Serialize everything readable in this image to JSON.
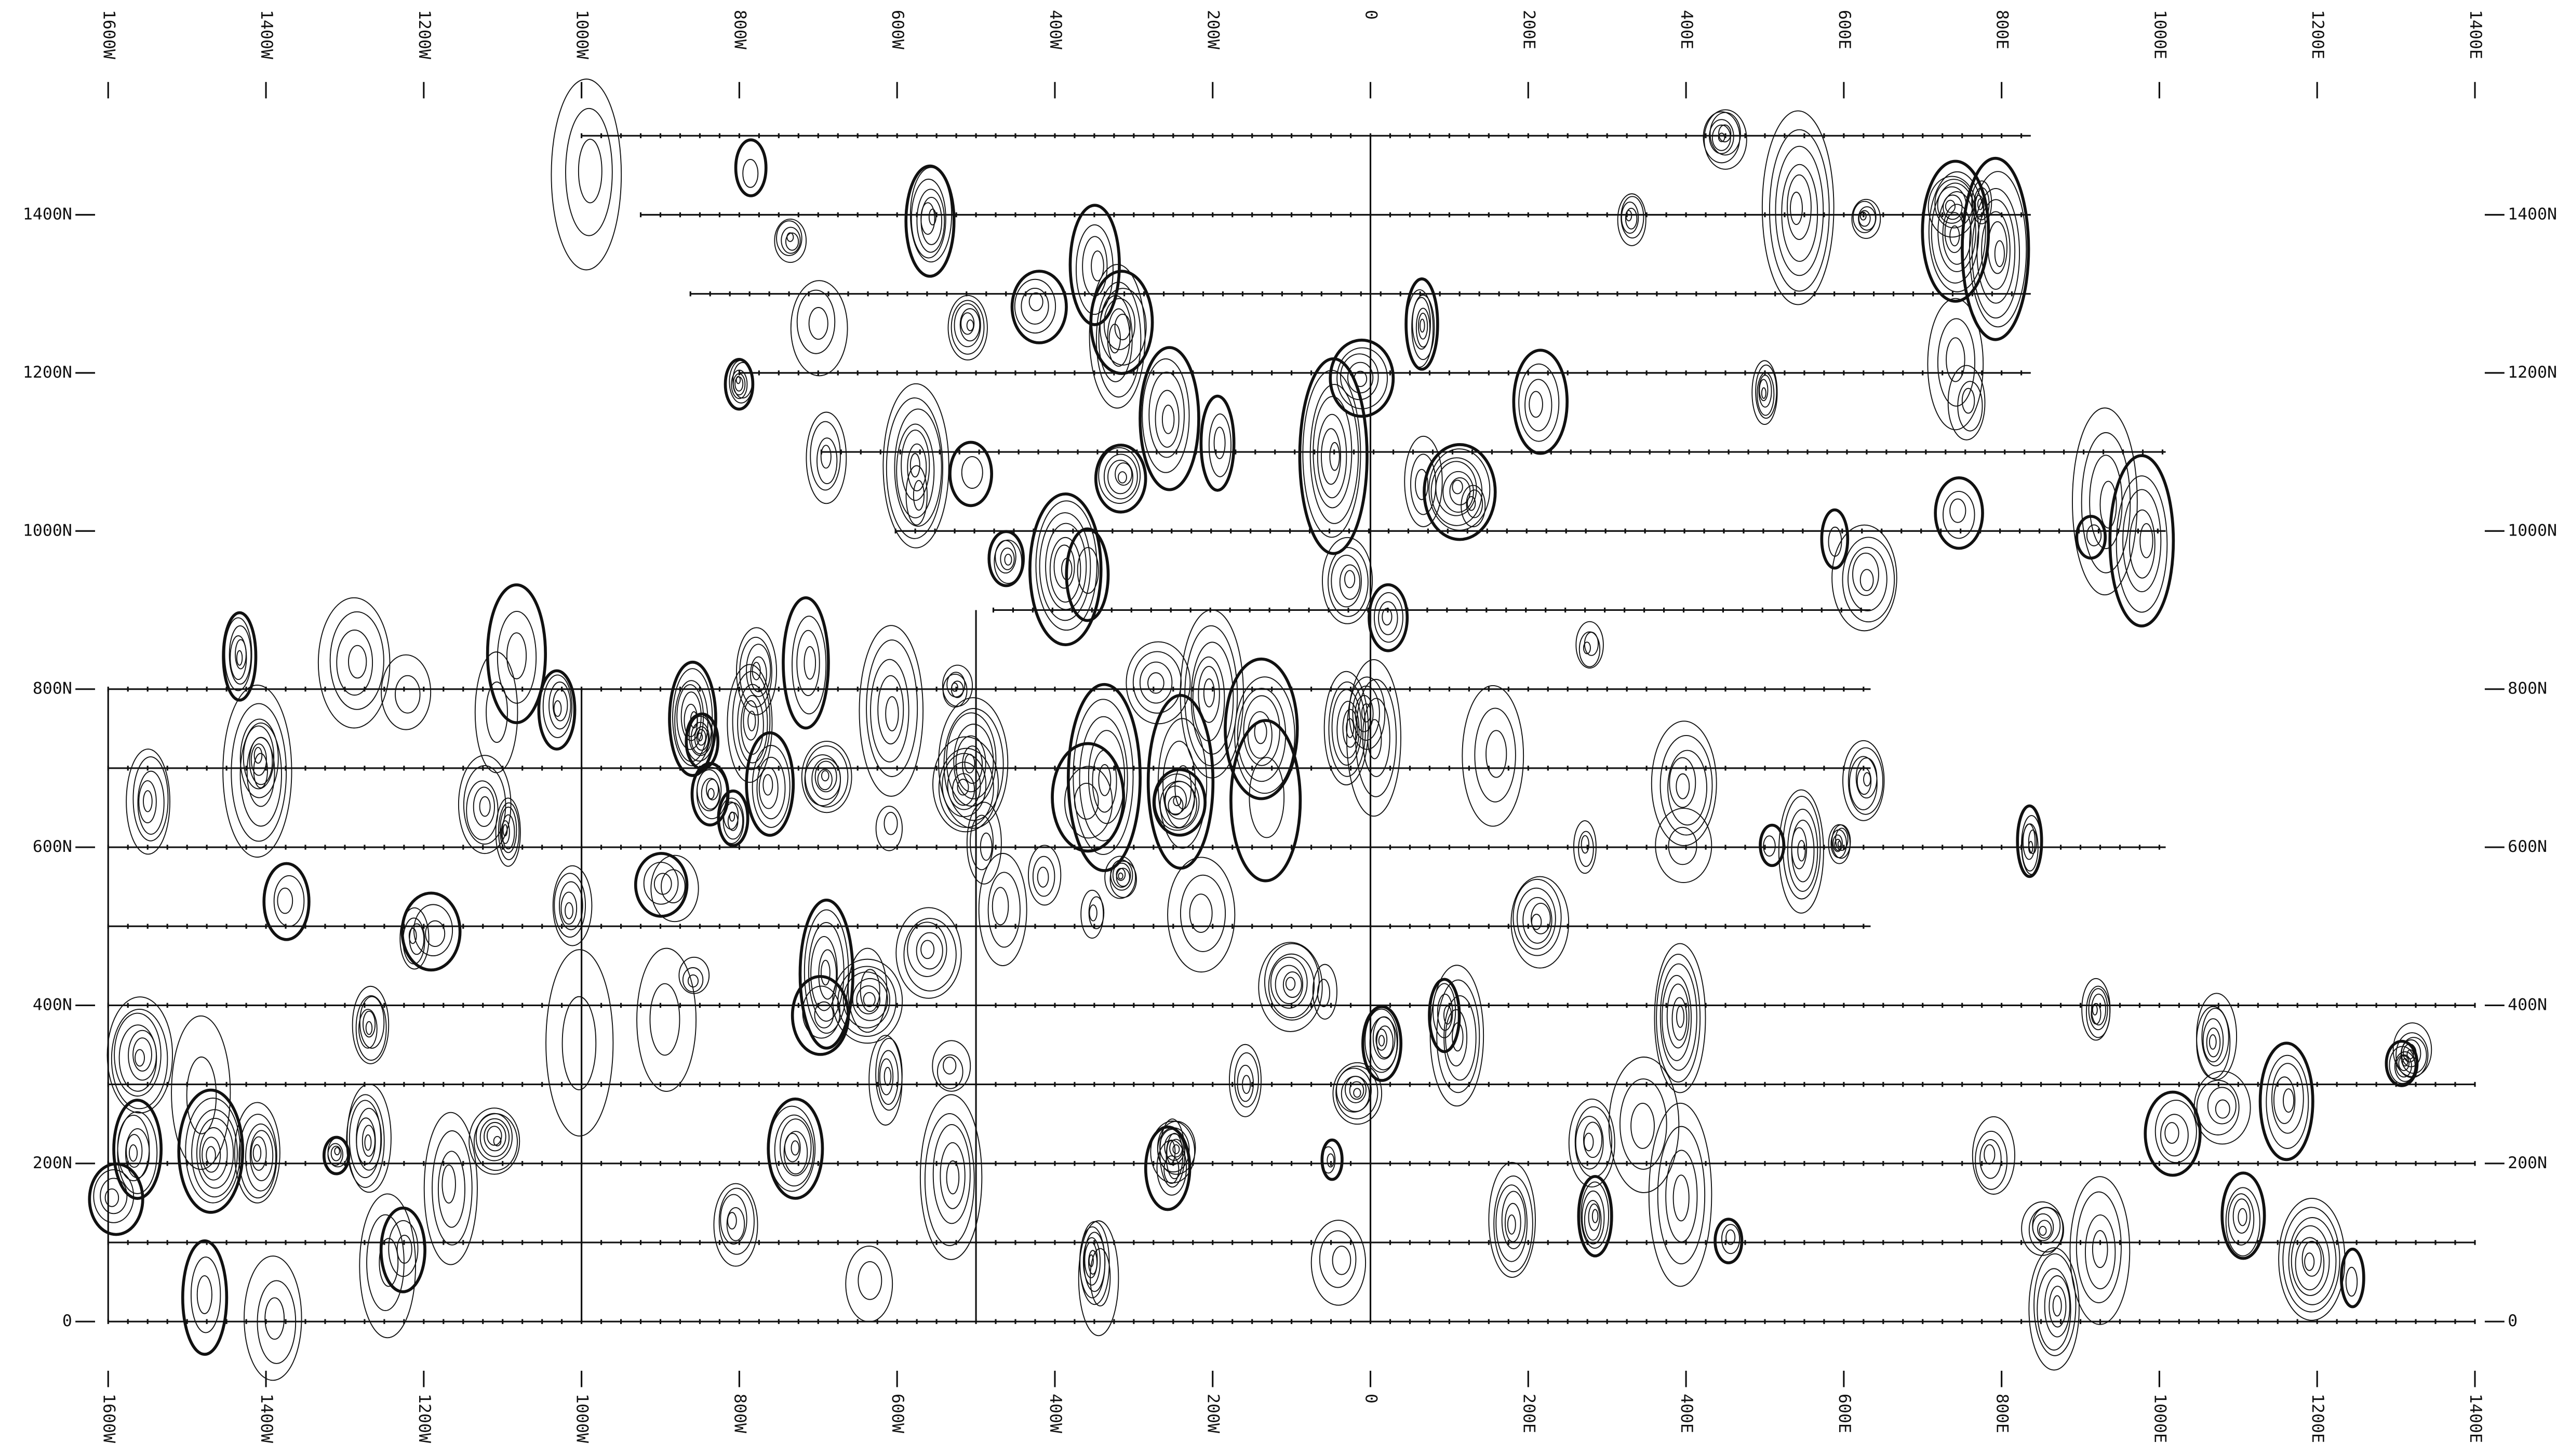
{
  "x_labels": [
    "1600W",
    "1400W",
    "1200W",
    "1000W",
    "800W",
    "600W",
    "400W",
    "200W",
    "0",
    "200E",
    "400E",
    "600E",
    "800E",
    "1000E",
    "1200E",
    "1400E"
  ],
  "y_labels": [
    "1400N",
    "1200N",
    "1000N",
    "800N",
    "600N",
    "400N",
    "200N",
    "0"
  ]
}
